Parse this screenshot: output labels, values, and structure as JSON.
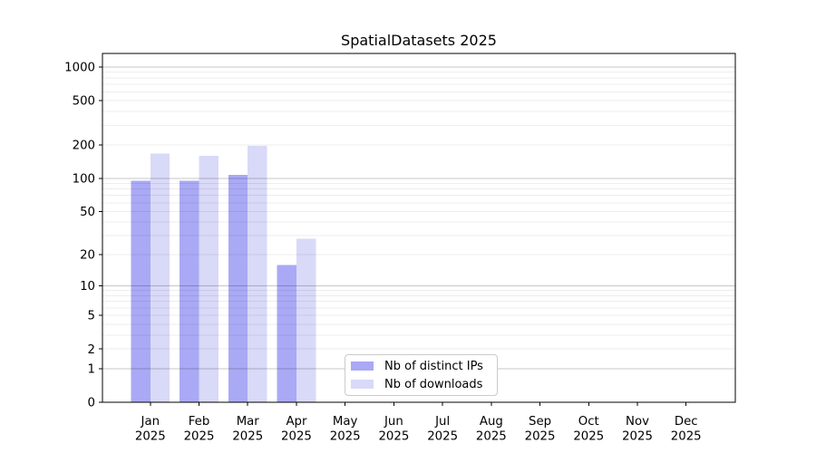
{
  "title": "SpatialDatasets 2025",
  "legend": {
    "items": [
      {
        "label": "Nb of distinct IPs",
        "color": "#a9a9f5"
      },
      {
        "label": "Nb of downloads",
        "color": "#d9d9f8"
      }
    ]
  },
  "chart_data": {
    "type": "bar",
    "title": "SpatialDatasets 2025",
    "categories": [
      "Jan 2025",
      "Feb 2025",
      "Mar 2025",
      "Apr 2025",
      "May 2025",
      "Jun 2025",
      "Jul 2025",
      "Aug 2025",
      "Sep 2025",
      "Oct 2025",
      "Nov 2025",
      "Dec 2025"
    ],
    "series": [
      {
        "name": "Nb of distinct IPs",
        "color": "#a9a9f5",
        "values": [
          95,
          95,
          107,
          16,
          0,
          0,
          0,
          0,
          0,
          0,
          0,
          0
        ]
      },
      {
        "name": "Nb of downloads",
        "color": "#d9d9f8",
        "values": [
          167,
          160,
          196,
          28,
          0,
          0,
          0,
          0,
          0,
          0,
          0,
          0
        ]
      }
    ],
    "xlabel": "",
    "ylabel": "",
    "yscale": "log1p",
    "y_ticks": [
      0,
      1,
      2,
      5,
      10,
      20,
      50,
      100,
      200,
      500,
      1000
    ],
    "ylim": [
      0,
      1320
    ],
    "grid": "major+minor horizontal",
    "legend_position": "lower center"
  },
  "colors": {
    "background": "#ffffff",
    "spine": "#000000",
    "grid_major": "rgba(0,0,0,0.22)",
    "grid_minor": "rgba(0,0,0,0.07)",
    "text": "#000000"
  }
}
